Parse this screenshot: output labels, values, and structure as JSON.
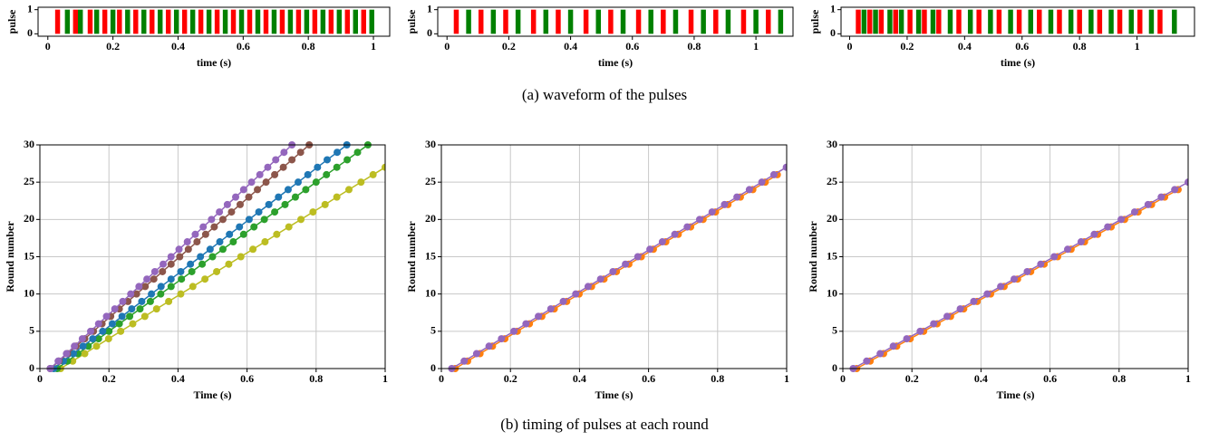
{
  "captions": [
    "(a) waveform of the pulses",
    "(b) timing of pulses at each round"
  ],
  "chart_data": [
    {
      "type": "pulse",
      "ylabel": "pulse",
      "xlabel": "time (s)",
      "xlim": [
        -0.03,
        1.05
      ],
      "ylim": [
        -0.1,
        1.1
      ],
      "xticks": [
        0.0,
        0.2,
        0.4,
        0.6,
        0.8,
        1.0
      ],
      "yticks": [
        0,
        1
      ],
      "grid": false,
      "series": [
        {
          "color": "#ff0000",
          "x": [
            0.03,
            0.085,
            0.13,
            0.175,
            0.22,
            0.27,
            0.32,
            0.37,
            0.42,
            0.47,
            0.52,
            0.57,
            0.62,
            0.67,
            0.72,
            0.77,
            0.82,
            0.87,
            0.92,
            0.97
          ],
          "values": [
            1,
            1,
            1,
            1,
            1,
            1,
            1,
            1,
            1,
            1,
            1,
            1,
            1,
            1,
            1,
            1,
            1,
            1,
            1,
            1
          ]
        },
        {
          "color": "#008000",
          "x": [
            0.06,
            0.1,
            0.15,
            0.2,
            0.245,
            0.295,
            0.345,
            0.395,
            0.445,
            0.495,
            0.545,
            0.595,
            0.645,
            0.695,
            0.745,
            0.795,
            0.845,
            0.895,
            0.945,
            0.995
          ],
          "values": [
            1,
            1,
            1,
            1,
            1,
            1,
            1,
            1,
            1,
            1,
            1,
            1,
            1,
            1,
            1,
            1,
            1,
            1,
            1,
            1
          ]
        }
      ]
    },
    {
      "type": "pulse",
      "ylabel": "pulse",
      "xlabel": "time (s)",
      "xlim": [
        -0.03,
        1.12
      ],
      "ylim": [
        -0.1,
        1.1
      ],
      "xticks": [
        0.0,
        0.2,
        0.4,
        0.6,
        0.8,
        1.0
      ],
      "yticks": [
        0,
        1
      ],
      "grid": false,
      "series": [
        {
          "color": "#ff0000",
          "x": [
            0.03,
            0.11,
            0.19,
            0.28,
            0.36,
            0.45,
            0.53,
            0.62,
            0.7,
            0.79,
            0.87,
            0.96,
            1.04
          ],
          "values": [
            1,
            1,
            1,
            1,
            1,
            1,
            1,
            1,
            1,
            1,
            1,
            1,
            1
          ]
        },
        {
          "color": "#008000",
          "x": [
            0.07,
            0.15,
            0.23,
            0.32,
            0.4,
            0.49,
            0.57,
            0.66,
            0.74,
            0.83,
            0.91,
            1.0,
            1.08
          ],
          "values": [
            1,
            1,
            1,
            1,
            1,
            1,
            1,
            1,
            1,
            1,
            1,
            1,
            1
          ]
        }
      ]
    },
    {
      "type": "pulse",
      "ylabel": "pulse",
      "xlabel": "time (s)",
      "xlim": [
        -0.03,
        1.2
      ],
      "ylim": [
        -0.1,
        1.1
      ],
      "xticks": [
        0.0,
        0.2,
        0.4,
        0.6,
        0.8,
        1.0
      ],
      "yticks": [
        0,
        1
      ],
      "grid": false,
      "series": [
        {
          "color": "#ff0000",
          "x": [
            0.03,
            0.07,
            0.11,
            0.16,
            0.21,
            0.26,
            0.31,
            0.38,
            0.45,
            0.52,
            0.59,
            0.66,
            0.73,
            0.8,
            0.87,
            0.94,
            1.01,
            1.08
          ],
          "values": [
            1,
            1,
            1,
            1,
            1,
            1,
            1,
            1,
            1,
            1,
            1,
            1,
            1,
            1,
            1,
            1,
            1,
            1
          ]
        },
        {
          "color": "#008000",
          "x": [
            0.05,
            0.09,
            0.14,
            0.18,
            0.24,
            0.29,
            0.35,
            0.42,
            0.49,
            0.56,
            0.63,
            0.7,
            0.77,
            0.84,
            0.91,
            0.98,
            1.05,
            1.13
          ],
          "values": [
            1,
            1,
            1,
            1,
            1,
            1,
            1,
            1,
            1,
            1,
            1,
            1,
            1,
            1,
            1,
            1,
            1,
            1
          ]
        }
      ]
    },
    {
      "type": "line",
      "ylabel": "Round number",
      "xlabel": "Time (s)",
      "xlim": [
        0.0,
        1.0
      ],
      "ylim": [
        0,
        30
      ],
      "xticks": [
        0.0,
        0.2,
        0.4,
        0.6,
        0.8,
        1.0
      ],
      "yticks": [
        0,
        5,
        10,
        15,
        20,
        25,
        30
      ],
      "grid": true,
      "series": [
        {
          "color": "#bcbd22",
          "x": [
            0.06,
            0.095,
            0.13,
            0.164,
            0.199,
            0.234,
            0.269,
            0.304,
            0.338,
            0.373,
            0.408,
            0.443,
            0.478,
            0.512,
            0.547,
            0.582,
            0.617,
            0.652,
            0.686,
            0.721,
            0.756,
            0.791,
            0.826,
            0.86,
            0.895,
            0.93,
            0.965,
            1.0
          ],
          "values": [
            0,
            1,
            2,
            3,
            4,
            5,
            6,
            7,
            8,
            9,
            10,
            11,
            12,
            13,
            14,
            15,
            16,
            17,
            18,
            19,
            20,
            21,
            22,
            23,
            24,
            25,
            26,
            27
          ]
        },
        {
          "color": "#2ca02c",
          "x": [
            0.05,
            0.08,
            0.11,
            0.14,
            0.17,
            0.2,
            0.23,
            0.26,
            0.29,
            0.32,
            0.35,
            0.38,
            0.41,
            0.44,
            0.47,
            0.5,
            0.53,
            0.56,
            0.59,
            0.62,
            0.65,
            0.68,
            0.71,
            0.74,
            0.77,
            0.8,
            0.83,
            0.86,
            0.89,
            0.92,
            0.95
          ],
          "values": [
            0,
            1,
            2,
            3,
            4,
            5,
            6,
            7,
            8,
            9,
            10,
            11,
            12,
            13,
            14,
            15,
            16,
            17,
            18,
            19,
            20,
            21,
            22,
            23,
            24,
            25,
            26,
            27,
            28,
            29,
            30
          ]
        },
        {
          "color": "#1f77b4",
          "x": [
            0.04,
            0.068,
            0.097,
            0.125,
            0.153,
            0.182,
            0.21,
            0.238,
            0.266,
            0.295,
            0.323,
            0.351,
            0.38,
            0.408,
            0.436,
            0.465,
            0.493,
            0.521,
            0.549,
            0.578,
            0.606,
            0.634,
            0.663,
            0.691,
            0.719,
            0.748,
            0.776,
            0.804,
            0.832,
            0.861,
            0.889
          ],
          "values": [
            0,
            1,
            2,
            3,
            4,
            5,
            6,
            7,
            8,
            9,
            10,
            11,
            12,
            13,
            14,
            15,
            16,
            17,
            18,
            19,
            20,
            21,
            22,
            23,
            24,
            25,
            26,
            27,
            28,
            29,
            30
          ]
        },
        {
          "color": "#8c564b",
          "x": [
            0.03,
            0.055,
            0.08,
            0.105,
            0.13,
            0.155,
            0.18,
            0.205,
            0.23,
            0.255,
            0.28,
            0.305,
            0.33,
            0.355,
            0.38,
            0.405,
            0.43,
            0.455,
            0.48,
            0.505,
            0.53,
            0.555,
            0.58,
            0.605,
            0.63,
            0.655,
            0.68,
            0.705,
            0.73,
            0.755,
            0.78
          ],
          "values": [
            0,
            1,
            2,
            3,
            4,
            5,
            6,
            7,
            8,
            9,
            10,
            11,
            12,
            13,
            14,
            15,
            16,
            17,
            18,
            19,
            20,
            21,
            22,
            23,
            24,
            25,
            26,
            27,
            28,
            29,
            30
          ]
        },
        {
          "color": "#9467bd",
          "x": [
            0.03,
            0.053,
            0.077,
            0.1,
            0.123,
            0.147,
            0.17,
            0.193,
            0.217,
            0.24,
            0.263,
            0.287,
            0.31,
            0.333,
            0.357,
            0.38,
            0.403,
            0.427,
            0.45,
            0.473,
            0.497,
            0.52,
            0.543,
            0.567,
            0.59,
            0.613,
            0.637,
            0.66,
            0.683,
            0.707,
            0.73
          ],
          "values": [
            0,
            1,
            2,
            3,
            4,
            5,
            6,
            7,
            8,
            9,
            10,
            11,
            12,
            13,
            14,
            15,
            16,
            17,
            18,
            19,
            20,
            21,
            22,
            23,
            24,
            25,
            26,
            27,
            28,
            29,
            30
          ]
        }
      ]
    },
    {
      "type": "line",
      "ylabel": "Round number",
      "xlabel": "Time (s)",
      "xlim": [
        0.0,
        1.0
      ],
      "ylim": [
        0,
        30
      ],
      "xticks": [
        0.0,
        0.2,
        0.4,
        0.6,
        0.8,
        1.0
      ],
      "yticks": [
        0,
        5,
        10,
        15,
        20,
        25,
        30
      ],
      "grid": true,
      "series": [
        {
          "color": "#ff7f0e",
          "x": [
            0.04,
            0.076,
            0.112,
            0.148,
            0.184,
            0.22,
            0.255,
            0.291,
            0.327,
            0.363,
            0.399,
            0.435,
            0.471,
            0.507,
            0.543,
            0.579,
            0.614,
            0.65,
            0.686,
            0.722,
            0.758,
            0.794,
            0.83,
            0.866,
            0.902,
            0.938,
            0.973
          ],
          "values": [
            0,
            1,
            2,
            3,
            4,
            5,
            6,
            7,
            8,
            9,
            10,
            11,
            12,
            13,
            14,
            15,
            16,
            17,
            18,
            19,
            20,
            21,
            22,
            23,
            24,
            25,
            26
          ]
        },
        {
          "color": "#9467bd",
          "x": [
            0.03,
            0.066,
            0.102,
            0.138,
            0.174,
            0.21,
            0.245,
            0.281,
            0.317,
            0.353,
            0.389,
            0.425,
            0.461,
            0.497,
            0.533,
            0.569,
            0.604,
            0.64,
            0.676,
            0.712,
            0.748,
            0.784,
            0.82,
            0.856,
            0.892,
            0.928,
            0.963,
            0.999
          ],
          "values": [
            0,
            1,
            2,
            3,
            4,
            5,
            6,
            7,
            8,
            9,
            10,
            11,
            12,
            13,
            14,
            15,
            16,
            17,
            18,
            19,
            20,
            21,
            22,
            23,
            24,
            25,
            26,
            27
          ]
        }
      ]
    },
    {
      "type": "line",
      "ylabel": "Round number",
      "xlabel": "Time (s)",
      "xlim": [
        0.0,
        1.0
      ],
      "ylim": [
        0,
        30
      ],
      "xticks": [
        0.0,
        0.2,
        0.4,
        0.6,
        0.8,
        1.0
      ],
      "yticks": [
        0,
        5,
        10,
        15,
        20,
        25,
        30
      ],
      "grid": true,
      "series": [
        {
          "color": "#ff7f0e",
          "x": [
            0.04,
            0.079,
            0.118,
            0.156,
            0.195,
            0.234,
            0.273,
            0.312,
            0.35,
            0.389,
            0.428,
            0.467,
            0.506,
            0.544,
            0.583,
            0.622,
            0.661,
            0.7,
            0.738,
            0.777,
            0.816,
            0.855,
            0.894,
            0.932,
            0.971
          ],
          "values": [
            0,
            1,
            2,
            3,
            4,
            5,
            6,
            7,
            8,
            9,
            10,
            11,
            12,
            13,
            14,
            15,
            16,
            17,
            18,
            19,
            20,
            21,
            22,
            23,
            24
          ]
        },
        {
          "color": "#9467bd",
          "x": [
            0.03,
            0.069,
            0.108,
            0.146,
            0.185,
            0.224,
            0.263,
            0.302,
            0.34,
            0.379,
            0.418,
            0.457,
            0.496,
            0.534,
            0.573,
            0.612,
            0.651,
            0.69,
            0.728,
            0.767,
            0.806,
            0.845,
            0.884,
            0.922,
            0.961,
            1.0
          ],
          "values": [
            0,
            1,
            2,
            3,
            4,
            5,
            6,
            7,
            8,
            9,
            10,
            11,
            12,
            13,
            14,
            15,
            16,
            17,
            18,
            19,
            20,
            21,
            22,
            23,
            24,
            25
          ]
        }
      ]
    }
  ]
}
